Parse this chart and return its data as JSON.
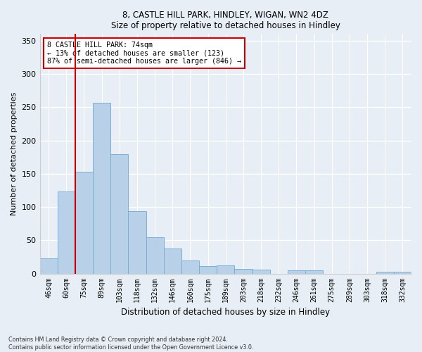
{
  "title1": "8, CASTLE HILL PARK, HINDLEY, WIGAN, WN2 4DZ",
  "title2": "Size of property relative to detached houses in Hindley",
  "xlabel": "Distribution of detached houses by size in Hindley",
  "ylabel": "Number of detached properties",
  "categories": [
    "46sqm",
    "60sqm",
    "75sqm",
    "89sqm",
    "103sqm",
    "118sqm",
    "132sqm",
    "146sqm",
    "160sqm",
    "175sqm",
    "189sqm",
    "203sqm",
    "218sqm",
    "232sqm",
    "246sqm",
    "261sqm",
    "275sqm",
    "289sqm",
    "303sqm",
    "318sqm",
    "332sqm"
  ],
  "values": [
    23,
    123,
    153,
    257,
    179,
    94,
    55,
    38,
    20,
    11,
    12,
    7,
    6,
    0,
    5,
    5,
    0,
    0,
    0,
    3,
    3
  ],
  "bar_color": "#b8d0e8",
  "bar_edge_color": "#7aafd4",
  "marker_label": "8 CASTLE HILL PARK: 74sqm",
  "annotation_line1": "← 13% of detached houses are smaller (123)",
  "annotation_line2": "87% of semi-detached houses are larger (846) →",
  "vline_color": "#cc0000",
  "vline_x": 2.0,
  "box_edge_color": "#cc0000",
  "ylim": [
    0,
    360
  ],
  "yticks": [
    0,
    50,
    100,
    150,
    200,
    250,
    300,
    350
  ],
  "footnote1": "Contains HM Land Registry data © Crown copyright and database right 2024.",
  "footnote2": "Contains public sector information licensed under the Open Government Licence v3.0.",
  "bg_color": "#e8eef5",
  "plot_bg_color": "#e8eef5"
}
